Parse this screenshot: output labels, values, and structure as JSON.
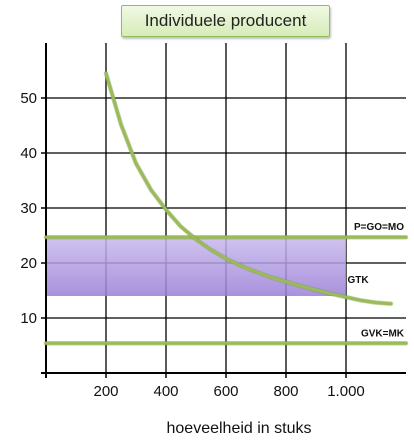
{
  "chart_data": {
    "type": "line",
    "title": "Individuele producent",
    "xlabel": "hoeveelheid in stuks",
    "ylabel": "",
    "xlim": [
      0,
      1200
    ],
    "ylim": [
      0,
      60
    ],
    "x_ticks": [
      200,
      400,
      600,
      800,
      1000
    ],
    "x_tick_labels": [
      "200",
      "400",
      "600",
      "800",
      "1.000"
    ],
    "y_ticks": [
      10,
      20,
      30,
      40,
      50
    ],
    "y_tick_labels": [
      "10",
      "20",
      "30",
      "40",
      "50"
    ],
    "grid": true,
    "series": [
      {
        "name": "GTK",
        "x": [
          200,
          250,
          300,
          350,
          400,
          450,
          500,
          550,
          600,
          650,
          700,
          750,
          800,
          850,
          900,
          950,
          1000,
          1050,
          1100,
          1150
        ],
        "y": [
          54.5,
          45.2,
          38.1,
          33.3,
          29.7,
          26.6,
          24.3,
          22.4,
          20.8,
          19.5,
          18.4,
          17.4,
          16.6,
          15.8,
          15.1,
          14.4,
          13.8,
          13.2,
          12.8,
          12.6
        ]
      },
      {
        "name": "P=GO=MO",
        "x": [
          0,
          1200
        ],
        "y": [
          24.7,
          24.7
        ]
      },
      {
        "name": "GVK=MK",
        "x": [
          0,
          1200
        ],
        "y": [
          5.4,
          5.4
        ]
      }
    ],
    "shaded_region": {
      "x": [
        0,
        1000
      ],
      "y": [
        14,
        24.7
      ]
    },
    "colors": {
      "line": "#9bbb59",
      "line_dark": "#7a9a3f",
      "shade_top": "#c8b8ec",
      "shade_bottom": "#9a7fd6"
    }
  }
}
